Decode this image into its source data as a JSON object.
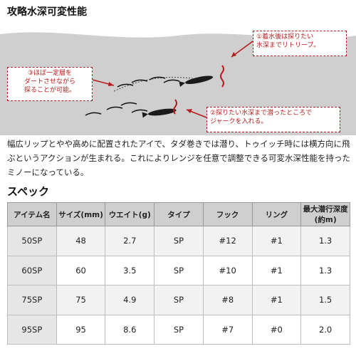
{
  "title": "攻略水深可変性能",
  "diagram": {
    "callout_1": [
      "①着水後は探りたい",
      "水深までリトリーブ。"
    ],
    "callout_2": [
      "②探りたい水深まで潜ったところで",
      "ジャークを入れる。"
    ],
    "callout_3": [
      "③ほぼ一定層を",
      "ダートさせながら",
      "探ることが可能。"
    ],
    "colors": {
      "water": "#cfcfcf",
      "accent": "#b71c1c",
      "lure": "#1a1a1a"
    }
  },
  "description": "幅広リップとやや高めに配置されたアイで、タダ巻きでは潜り、トゥイッチ時には横方向に飛ぶというアクションが生まれる。これによりレンジを任意で調整できる可変水深性能を持ったミノーになっている。",
  "specs_title": "スペック",
  "table": {
    "headers": [
      "アイテム名",
      "サイズ(mm)",
      "ウエイト(g)",
      "タイプ",
      "フック",
      "リング",
      "最大潜行深度(約m)"
    ],
    "rows": [
      [
        "50SP",
        "48",
        "2.7",
        "SP",
        "#12",
        "#1",
        "1.3"
      ],
      [
        "60SP",
        "60",
        "3.5",
        "SP",
        "#10",
        "#1",
        "1.3"
      ],
      [
        "75SP",
        "75",
        "4.9",
        "SP",
        "#8",
        "#1",
        "1.5"
      ],
      [
        "95SP",
        "95",
        "8.6",
        "SP",
        "#7",
        "#0",
        "2.0"
      ]
    ]
  }
}
